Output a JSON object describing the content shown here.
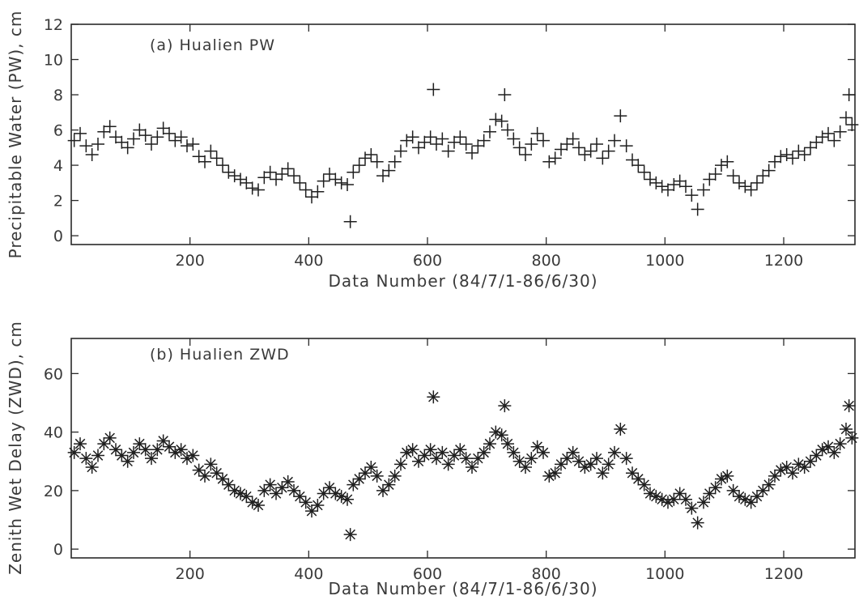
{
  "chart_data": [
    {
      "type": "scatter",
      "marker": "plus",
      "title": "(a) Hualien PW",
      "xlabel": "Data Number (84/7/1-86/6/30)",
      "ylabel": "Precipitable Water (PW), cm",
      "xlim": [
        0,
        1320
      ],
      "ylim": [
        -0.5,
        12
      ],
      "xticks": [
        200,
        400,
        600,
        800,
        1000,
        1200
      ],
      "yticks": [
        0,
        2,
        4,
        6,
        8,
        10,
        12
      ],
      "grid": false,
      "x": [
        5,
        15,
        25,
        35,
        45,
        55,
        65,
        75,
        85,
        95,
        105,
        115,
        125,
        135,
        145,
        155,
        165,
        175,
        185,
        195,
        205,
        215,
        225,
        235,
        245,
        255,
        265,
        275,
        285,
        295,
        305,
        315,
        325,
        335,
        345,
        355,
        365,
        375,
        385,
        395,
        405,
        415,
        425,
        435,
        445,
        455,
        465,
        470,
        475,
        485,
        495,
        505,
        515,
        525,
        535,
        545,
        555,
        565,
        575,
        585,
        595,
        605,
        610,
        615,
        625,
        635,
        645,
        655,
        665,
        675,
        685,
        695,
        705,
        715,
        725,
        730,
        735,
        745,
        755,
        765,
        775,
        785,
        795,
        805,
        815,
        825,
        835,
        845,
        855,
        865,
        875,
        885,
        895,
        905,
        915,
        925,
        935,
        945,
        955,
        965,
        975,
        985,
        995,
        1005,
        1015,
        1025,
        1035,
        1045,
        1055,
        1065,
        1075,
        1085,
        1095,
        1105,
        1115,
        1125,
        1135,
        1145,
        1155,
        1165,
        1175,
        1185,
        1195,
        1205,
        1215,
        1225,
        1235,
        1245,
        1255,
        1265,
        1275,
        1285,
        1295,
        1305,
        1310,
        1315
      ],
      "y": [
        5.4,
        5.8,
        5.1,
        4.6,
        5.2,
        5.9,
        6.2,
        5.6,
        5.3,
        5.0,
        5.5,
        6.0,
        5.7,
        5.2,
        5.6,
        6.1,
        5.8,
        5.4,
        5.6,
        5.1,
        5.2,
        4.5,
        4.2,
        4.8,
        4.4,
        4.0,
        3.6,
        3.4,
        3.2,
        3.0,
        2.7,
        2.6,
        3.3,
        3.6,
        3.2,
        3.5,
        3.8,
        3.4,
        3.0,
        2.6,
        2.2,
        2.5,
        3.1,
        3.5,
        3.2,
        3.0,
        2.9,
        0.8,
        3.6,
        4.0,
        4.4,
        4.6,
        4.2,
        3.4,
        3.7,
        4.2,
        4.8,
        5.4,
        5.6,
        5.0,
        5.3,
        5.6,
        8.3,
        5.2,
        5.5,
        4.8,
        5.3,
        5.6,
        5.2,
        4.7,
        5.1,
        5.4,
        5.9,
        6.6,
        6.5,
        8.0,
        6.0,
        5.5,
        5.0,
        4.6,
        5.2,
        5.8,
        5.4,
        4.2,
        4.4,
        4.9,
        5.2,
        5.5,
        5.0,
        4.6,
        4.8,
        5.2,
        4.4,
        4.8,
        5.4,
        6.8,
        5.1,
        4.3,
        4.0,
        3.6,
        3.2,
        3.0,
        2.8,
        2.6,
        2.9,
        3.1,
        2.8,
        2.3,
        1.5,
        2.6,
        3.2,
        3.5,
        4.0,
        4.2,
        3.4,
        3.0,
        2.8,
        2.6,
        3.0,
        3.4,
        3.7,
        4.2,
        4.5,
        4.6,
        4.4,
        4.8,
        4.6,
        5.0,
        5.3,
        5.6,
        5.8,
        5.4,
        5.9,
        6.7,
        8.0,
        6.3
      ]
    },
    {
      "type": "scatter",
      "marker": "asterisk",
      "title": "(b) Hualien ZWD",
      "xlabel": "Data Number (84/7/1-86/6/30)",
      "ylabel": "Zenith Wet Delay (ZWD), cm",
      "xlim": [
        0,
        1320
      ],
      "ylim": [
        -3,
        72
      ],
      "xticks": [
        200,
        400,
        600,
        800,
        1000,
        1200
      ],
      "yticks": [
        0,
        20,
        40,
        60
      ],
      "grid": false,
      "x": [
        5,
        15,
        25,
        35,
        45,
        55,
        65,
        75,
        85,
        95,
        105,
        115,
        125,
        135,
        145,
        155,
        165,
        175,
        185,
        195,
        205,
        215,
        225,
        235,
        245,
        255,
        265,
        275,
        285,
        295,
        305,
        315,
        325,
        335,
        345,
        355,
        365,
        375,
        385,
        395,
        405,
        415,
        425,
        435,
        445,
        455,
        465,
        470,
        475,
        485,
        495,
        505,
        515,
        525,
        535,
        545,
        555,
        565,
        575,
        585,
        595,
        605,
        610,
        615,
        625,
        635,
        645,
        655,
        665,
        675,
        685,
        695,
        705,
        715,
        725,
        730,
        735,
        745,
        755,
        765,
        775,
        785,
        795,
        805,
        815,
        825,
        835,
        845,
        855,
        865,
        875,
        885,
        895,
        905,
        915,
        925,
        935,
        945,
        955,
        965,
        975,
        985,
        995,
        1005,
        1015,
        1025,
        1035,
        1045,
        1055,
        1065,
        1075,
        1085,
        1095,
        1105,
        1115,
        1125,
        1135,
        1145,
        1155,
        1165,
        1175,
        1185,
        1195,
        1205,
        1215,
        1225,
        1235,
        1245,
        1255,
        1265,
        1275,
        1285,
        1295,
        1305,
        1310,
        1315
      ],
      "y": [
        33,
        36,
        31,
        28,
        32,
        36,
        38,
        34,
        32,
        30,
        33,
        36,
        34,
        31,
        34,
        37,
        35,
        33,
        34,
        31,
        32,
        27,
        25,
        29,
        26,
        24,
        22,
        20,
        19,
        18,
        16,
        15,
        20,
        22,
        19,
        21,
        23,
        20,
        18,
        16,
        13,
        15,
        19,
        21,
        19,
        18,
        17,
        5,
        22,
        24,
        26,
        28,
        25,
        20,
        22,
        25,
        29,
        33,
        34,
        30,
        32,
        34,
        52,
        31,
        33,
        29,
        32,
        34,
        31,
        28,
        31,
        33,
        36,
        40,
        39,
        49,
        36,
        33,
        30,
        28,
        31,
        35,
        33,
        25,
        26,
        29,
        31,
        33,
        30,
        28,
        29,
        31,
        26,
        29,
        33,
        41,
        31,
        26,
        24,
        22,
        19,
        18,
        17,
        16,
        17,
        19,
        17,
        14,
        9,
        16,
        19,
        21,
        24,
        25,
        20,
        18,
        17,
        16,
        18,
        20,
        22,
        25,
        27,
        28,
        26,
        29,
        28,
        30,
        32,
        34,
        35,
        33,
        36,
        41,
        49,
        38
      ]
    }
  ]
}
